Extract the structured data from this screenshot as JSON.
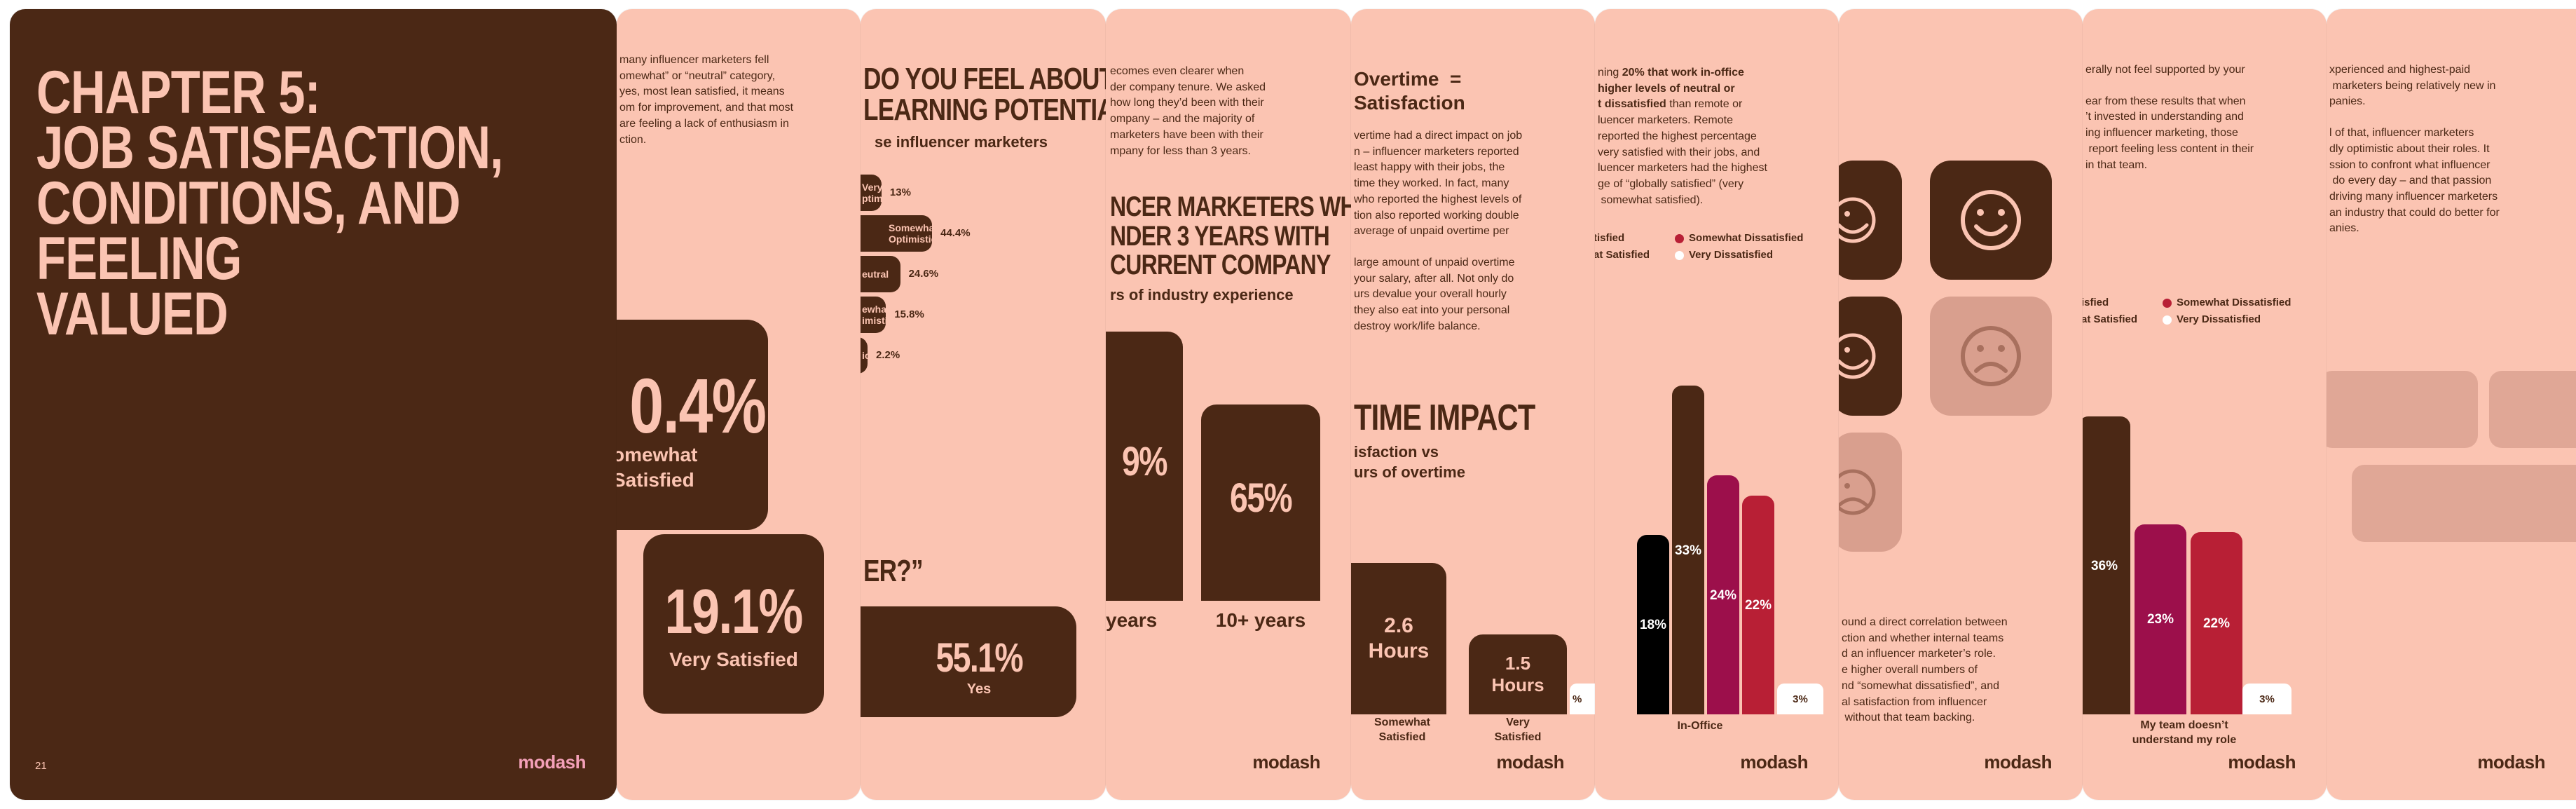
{
  "brand": "modash",
  "p1": {
    "title_lines": [
      "CHAPTER 5:",
      "JOB SATISFACTION,",
      "CONDITIONS, AND FEELING",
      "VALUED"
    ],
    "page_number": "21"
  },
  "p2": {
    "text_lines": [
      "many influencer marketers fell",
      "omewhat” or “neutral” category,",
      "yes, most lean satisfied, it means",
      "om for improvement, and that most",
      "are feeling a lack of enthusiasm in",
      "ction."
    ],
    "stat1_value": "0.4%",
    "stat1_label1": "omewhat",
    "stat1_label2": "Satisfied",
    "stat2_value": "19.1%",
    "stat2_label": "Very Satisfied"
  },
  "p3": {
    "heading_lines": [
      "DO YOU FEEL ABOUT",
      "LEARNING POTENTIAL?"
    ],
    "subheading": "se influencer marketers",
    "bars": [
      {
        "label1": "Very",
        "label2": "ptimistic",
        "value": "13%",
        "pct": 13
      },
      {
        "label1": "Somewhat",
        "label2": "Optimistic",
        "value": "44.4%",
        "pct": 44.4
      },
      {
        "label1": "eutral",
        "label2": "",
        "value": "24.6%",
        "pct": 24.6
      },
      {
        "label1": "ewhat",
        "label2": "imistic",
        "value": "15.8%",
        "pct": 15.8
      },
      {
        "label1": "ic",
        "label2": "",
        "value": "2.2%",
        "pct": 2.2
      }
    ],
    "question_fragment": "ER?”",
    "yes_value": "55.1%",
    "yes_label": "Yes"
  },
  "p4": {
    "text_lines": [
      "ecomes even clearer when",
      "der company tenure. We asked",
      "how long they’d been with their",
      "ompany – and the majority of",
      "marketers have been with their",
      "mpany for less than 3 years."
    ],
    "heading_lines": [
      "NCER MARKETERS WHO",
      "NDER 3 YEARS WITH",
      "CURRENT COMPANY"
    ],
    "subheading": "rs of industry experience",
    "bar1_value": "9%",
    "bar1_label": "years",
    "bar2_value": "65%",
    "bar2_label": "10+ years"
  },
  "p5": {
    "intro_line1": "Overtime  =",
    "intro_line2": "Satisfaction",
    "text_lines": [
      "vertime had a direct impact on job",
      "n – influencer marketers reported",
      "least happy with their jobs, the",
      "time they worked. In fact, many",
      "who reported the highest levels of",
      "tion also reported working double",
      "average of unpaid overtime per",
      "",
      "large amount of unpaid overtime",
      "your salary, after all. Not only do",
      "urs devalue your overall hourly",
      "they also eat into your personal",
      "destroy work/life balance."
    ],
    "heading": "TIME IMPACT",
    "subheading_lines": [
      "isfaction vs",
      "urs of overtime"
    ],
    "bar1_value1": "2.6",
    "bar1_value2": "Hours",
    "bar1_label1": "Somewhat",
    "bar1_label2": "Satisfied",
    "bar2_value1": "1.5",
    "bar2_value2": "Hours",
    "bar2_label1": "Very",
    "bar2_label2": "Satisfied",
    "edge_value": "%"
  },
  "p6": {
    "text_lines": [
      [
        {
          "t": "ning ",
          "b": false
        },
        {
          "t": "20% that work in-office",
          "b": true
        }
      ],
      [
        {
          "t": "higher levels of neutral or",
          "b": true
        }
      ],
      [
        {
          "t": "t dissatisfied",
          "b": true
        },
        {
          "t": " than remote or",
          "b": false
        }
      ],
      [
        {
          "t": "luencer marketers. Remote",
          "b": false
        }
      ],
      [
        {
          "t": "reported the highest percentage",
          "b": false
        }
      ],
      [
        {
          "t": "very satisfied with their jobs, and",
          "b": false
        }
      ],
      [
        {
          "t": "luencer marketers had the highest",
          "b": false
        }
      ],
      [
        {
          "t": "ge of “globally satisfied” (very",
          "b": false
        }
      ],
      [
        {
          "t": " somewhat satisfied).",
          "b": false
        }
      ]
    ],
    "legend": [
      {
        "label": "tisfied",
        "color": "#4b2815"
      },
      {
        "label": "Somewhat Dissatisfied",
        "color": "#b81f35"
      },
      {
        "label": "at Satisfied",
        "color": "#4b2815"
      },
      {
        "label": "Very Dissatisfied",
        "color": "#ffffff"
      }
    ],
    "bars": [
      {
        "value": "18%",
        "num": 18,
        "color": "#000000"
      },
      {
        "value": "33%",
        "num": 33,
        "color": "#4b2815"
      },
      {
        "value": "24%",
        "num": 24,
        "color": "#9c0f4b"
      },
      {
        "value": "22%",
        "num": 22,
        "color": "#b81f35"
      }
    ],
    "small_value": "3%",
    "category": "In-Office"
  },
  "p7": {
    "icons": [
      "smiley-icon",
      "smiley-icon",
      "smiley-icon",
      "sad-face-icon",
      "sad-face-icon"
    ],
    "text_lines": [
      "ound a direct correlation between",
      "ction and whether internal teams",
      "d an influencer marketer’s role.",
      "e higher overall numbers of",
      "nd “somewhat dissatisfied”, and",
      "al satisfaction from influencer",
      " without that team backing."
    ]
  },
  "p8": {
    "text_lines": [
      "erally not feel supported by your",
      "",
      "ear from these results that when",
      "’t invested in understanding and",
      "ing influencer marketing, those",
      " report feeling less content in their",
      "in that team."
    ],
    "legend": [
      {
        "label": "isfied",
        "color": "#4b2815"
      },
      {
        "label": "Somewhat Dissatisfied",
        "color": "#b81f35"
      },
      {
        "label": "at Satisfied",
        "color": "#4b2815"
      },
      {
        "label": "Very Dissatisfied",
        "color": "#ffffff"
      }
    ],
    "bars": [
      {
        "value": "36%",
        "num": 36,
        "color": "#4b2815"
      },
      {
        "value": "23%",
        "num": 23,
        "color": "#9c0f4b"
      },
      {
        "value": "22%",
        "num": 22,
        "color": "#b81f35"
      }
    ],
    "small_value": "3%",
    "category_line1": "My team doesn’t",
    "category_line2": "understand my role"
  },
  "p9": {
    "text_lines": [
      "xperienced and highest-paid",
      " marketers being relatively new in",
      "panies.",
      "",
      "l of that, influencer marketers",
      "dly optimistic about their roles. It",
      "ssion to confront what influencer",
      " do every day – and that passion",
      "driving many influencer marketers",
      "an industry that could do better for",
      "anies."
    ]
  }
}
